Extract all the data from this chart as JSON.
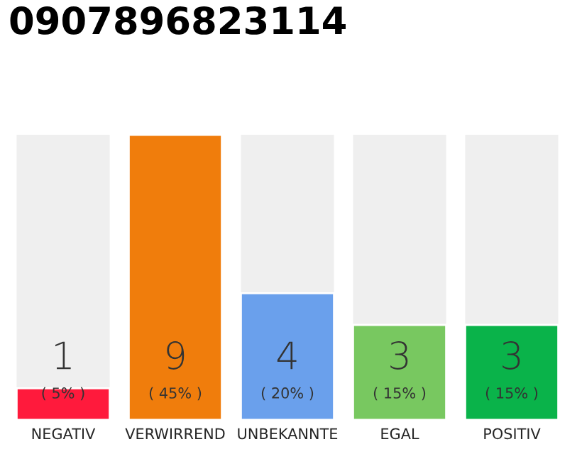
{
  "chart_data": {
    "type": "bar",
    "title": "0907896823114",
    "categories": [
      "NEGATIV",
      "VERWIRREND",
      "UNBEKANNTE",
      "EGAL",
      "POSITIV"
    ],
    "values": [
      1,
      9,
      4,
      3,
      3
    ],
    "colors": [
      "#ff1a3c",
      "#f07d0c",
      "#6aa0ec",
      "#78c860",
      "#0ab34a"
    ],
    "data_labels": true,
    "annotations": [
      "( 5% )",
      "( 45% )",
      "( 20% )",
      "( 15% )",
      "( 15% )"
    ],
    "grid": false,
    "legend": false
  }
}
